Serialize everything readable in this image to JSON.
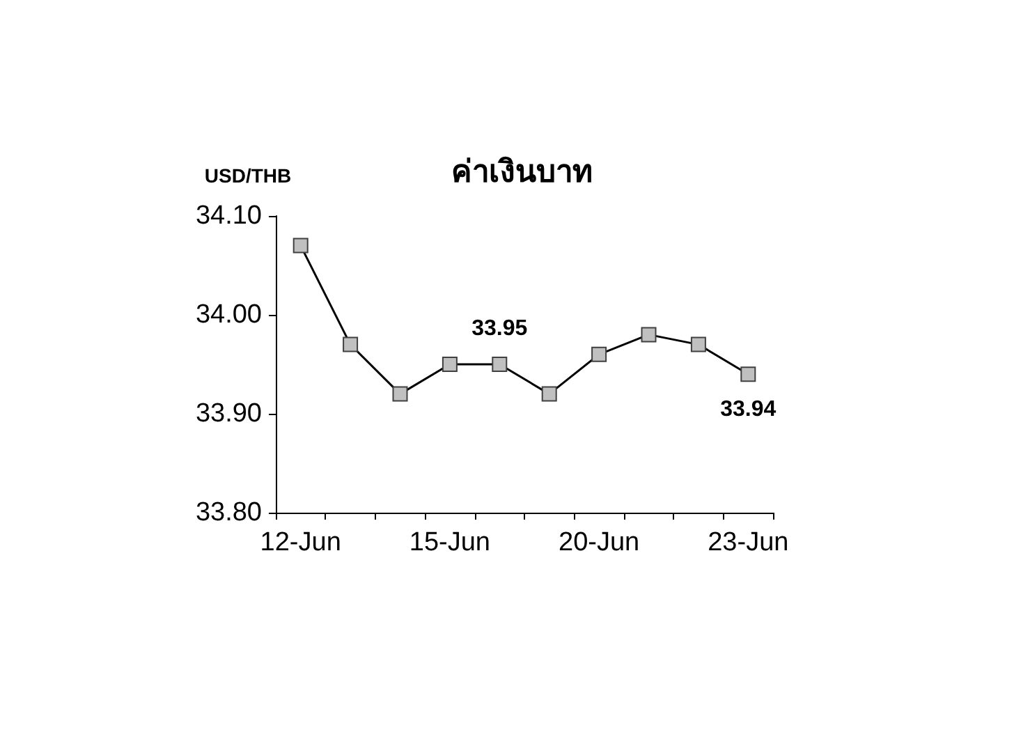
{
  "chart_data": {
    "type": "line",
    "title": "ค่าเงินบาท",
    "ylabel": "USD/THB",
    "categories": [
      "12-Jun",
      null,
      null,
      "15-Jun",
      null,
      null,
      "20-Jun",
      null,
      null,
      "23-Jun"
    ],
    "series": [
      {
        "color": "#000000",
        "values": [
          34.07,
          33.97,
          33.92,
          33.95,
          33.95,
          33.92,
          33.96,
          33.98,
          33.97,
          33.94
        ],
        "value_labels": [
          null,
          null,
          null,
          null,
          "33.95",
          null,
          null,
          null,
          null,
          "33.94"
        ]
      }
    ],
    "ylim": [
      33.8,
      34.1
    ],
    "yticks": [
      {
        "value": 33.8,
        "label": "33.80"
      },
      {
        "value": 33.9,
        "label": "33.90"
      },
      {
        "value": 34.0,
        "label": "34.00"
      },
      {
        "value": 34.1,
        "label": "34.10"
      }
    ],
    "marker": "square",
    "line_style": "solid",
    "grid": false
  }
}
